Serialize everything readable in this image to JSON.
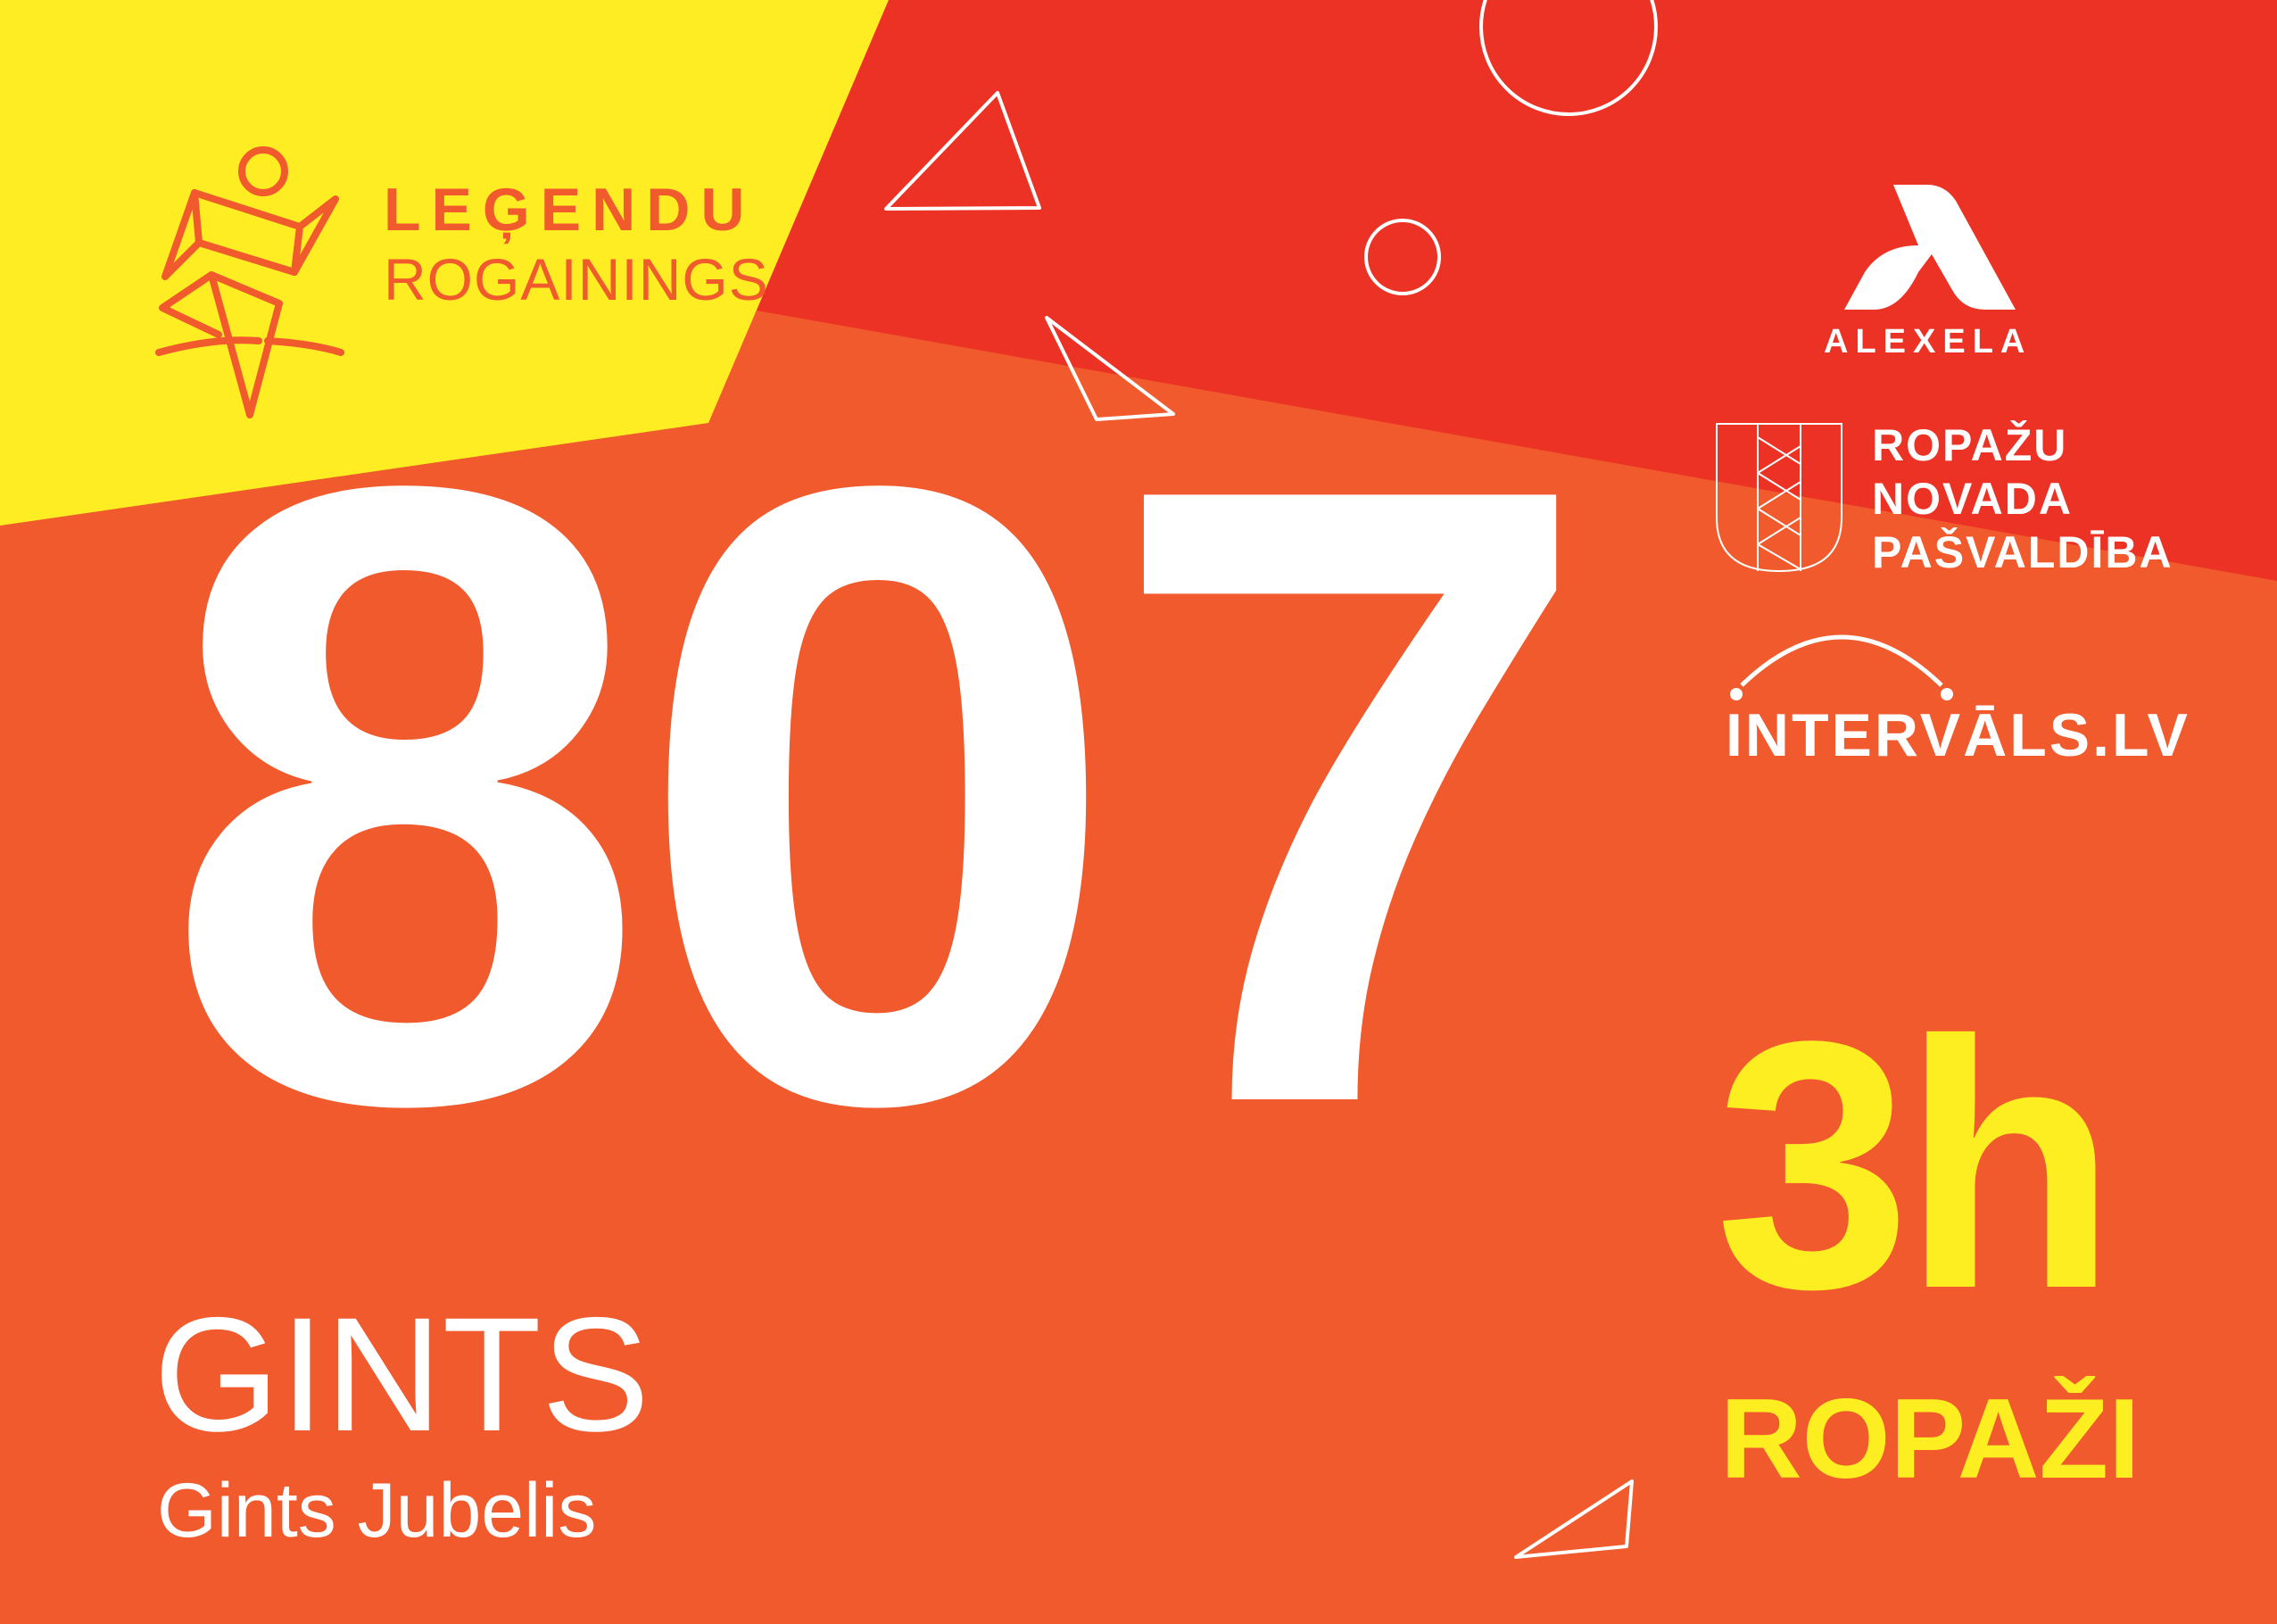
{
  "colors": {
    "yellow": "#FFED24",
    "red": "#EC3224",
    "orange": "#F05A2C",
    "accent_text": "#FDEE21",
    "white": "#FFFFFF"
  },
  "organizer": {
    "line1": "LEĢENDU",
    "line2": "ROGAININGS"
  },
  "sponsors": {
    "alexela": "ALEXELA",
    "municipality": [
      "ROPAŽU",
      "NOVADA",
      "PAŠVALDĪBA"
    ],
    "intervals": "INTERVĀLS.LV"
  },
  "bib": {
    "number": "807",
    "first_name": "GINTS",
    "full_name": "Gints Jubelis",
    "duration": "3h",
    "location": "ROPAŽI"
  }
}
